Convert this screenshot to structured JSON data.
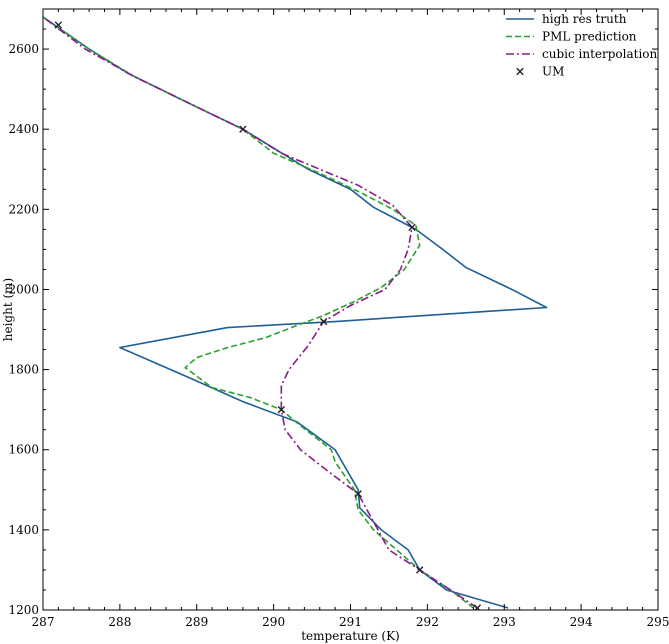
{
  "chart_data": {
    "type": "line",
    "title": "",
    "xlabel": "temperature (K)",
    "ylabel": "height (m)",
    "xlim": [
      287,
      295
    ],
    "ylim": [
      1200,
      2700
    ],
    "xticks": [
      287,
      288,
      289,
      290,
      291,
      292,
      293,
      294,
      295
    ],
    "yticks": [
      1200,
      1400,
      1600,
      1800,
      2000,
      2200,
      2400,
      2600
    ],
    "grid": false,
    "legend_position": "top-right",
    "series": [
      {
        "name": "high res truth",
        "style": "solid",
        "color": "#1f5f95",
        "points": [
          [
            293.05,
            1205
          ],
          [
            292.25,
            1250
          ],
          [
            291.9,
            1300
          ],
          [
            291.75,
            1350
          ],
          [
            291.4,
            1400
          ],
          [
            291.12,
            1455
          ],
          [
            291.1,
            1500
          ],
          [
            290.8,
            1600
          ],
          [
            290.3,
            1670
          ],
          [
            289.6,
            1720
          ],
          [
            288.9,
            1780
          ],
          [
            288.0,
            1855
          ],
          [
            289.4,
            1905
          ],
          [
            290.8,
            1920
          ],
          [
            293.55,
            1955
          ],
          [
            293.1,
            2000
          ],
          [
            292.5,
            2055
          ],
          [
            292.2,
            2100
          ],
          [
            291.85,
            2150
          ],
          [
            291.3,
            2205
          ],
          [
            291.0,
            2250
          ],
          [
            290.45,
            2300
          ],
          [
            289.6,
            2400
          ],
          [
            288.95,
            2460
          ],
          [
            288.1,
            2540
          ],
          [
            287.6,
            2600
          ],
          [
            287.0,
            2680
          ]
        ]
      },
      {
        "name": "PML prediction",
        "style": "dashed",
        "color": "#2ca02c",
        "points": [
          [
            292.6,
            1205
          ],
          [
            292.3,
            1250
          ],
          [
            291.9,
            1300
          ],
          [
            291.6,
            1350
          ],
          [
            291.3,
            1400
          ],
          [
            291.1,
            1450
          ],
          [
            291.05,
            1500
          ],
          [
            290.8,
            1570
          ],
          [
            290.75,
            1600
          ],
          [
            290.35,
            1660
          ],
          [
            290.1,
            1700
          ],
          [
            289.7,
            1730
          ],
          [
            289.2,
            1755
          ],
          [
            288.85,
            1805
          ],
          [
            289.0,
            1830
          ],
          [
            289.4,
            1855
          ],
          [
            289.9,
            1880
          ],
          [
            290.3,
            1910
          ],
          [
            290.65,
            1935
          ],
          [
            291.05,
            1970
          ],
          [
            291.4,
            2005
          ],
          [
            291.7,
            2050
          ],
          [
            291.9,
            2110
          ],
          [
            291.85,
            2160
          ],
          [
            291.55,
            2200
          ],
          [
            291.15,
            2240
          ],
          [
            290.6,
            2290
          ],
          [
            290.0,
            2340
          ],
          [
            289.6,
            2400
          ],
          [
            288.95,
            2460
          ],
          [
            288.2,
            2530
          ],
          [
            287.6,
            2600
          ],
          [
            287.0,
            2680
          ]
        ]
      },
      {
        "name": "cubic interpolation",
        "style": "dashdot",
        "color": "#8b1a8b",
        "points": [
          [
            292.65,
            1205
          ],
          [
            292.3,
            1250
          ],
          [
            291.9,
            1300
          ],
          [
            291.5,
            1350
          ],
          [
            291.1,
            1490
          ],
          [
            290.75,
            1540
          ],
          [
            290.35,
            1600
          ],
          [
            290.15,
            1650
          ],
          [
            290.1,
            1700
          ],
          [
            290.1,
            1760
          ],
          [
            290.2,
            1800
          ],
          [
            290.45,
            1860
          ],
          [
            290.65,
            1920
          ],
          [
            291.0,
            1960
          ],
          [
            291.45,
            2000
          ],
          [
            291.65,
            2050
          ],
          [
            291.75,
            2100
          ],
          [
            291.8,
            2155
          ],
          [
            291.55,
            2210
          ],
          [
            291.1,
            2260
          ],
          [
            290.6,
            2300
          ],
          [
            290.1,
            2340
          ],
          [
            289.6,
            2400
          ],
          [
            288.9,
            2465
          ],
          [
            288.2,
            2530
          ],
          [
            287.55,
            2600
          ],
          [
            287.0,
            2680
          ]
        ]
      }
    ],
    "markers": {
      "name": "UM",
      "symbol": "x",
      "color": "#222222",
      "points": [
        [
          292.65,
          1205
        ],
        [
          291.9,
          1300
        ],
        [
          291.1,
          1490
        ],
        [
          290.1,
          1700
        ],
        [
          290.65,
          1920
        ],
        [
          291.8,
          2155
        ],
        [
          289.6,
          2400
        ],
        [
          287.2,
          2660
        ]
      ]
    }
  }
}
